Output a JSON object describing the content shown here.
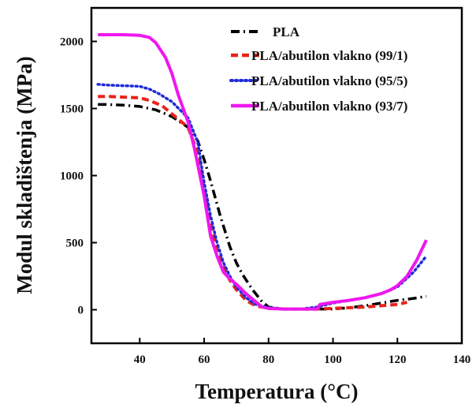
{
  "chart_data": {
    "type": "line",
    "title": "",
    "xlabel": "Temperatura (°C)",
    "ylabel": "Modul skladištenja (MPa)",
    "xlim": [
      25,
      140
    ],
    "ylim": [
      -250,
      2250
    ],
    "xticks": [
      40,
      60,
      80,
      100,
      120,
      140
    ],
    "yticks": [
      0,
      500,
      1000,
      1500,
      2000
    ],
    "legend_position": "top-right",
    "grid": false,
    "series": [
      {
        "name": "PLA",
        "color": "#000000",
        "dash": "dash-dot",
        "x": [
          27,
          30,
          35,
          40,
          45,
          50,
          55,
          58,
          60,
          62,
          65,
          68,
          70,
          72,
          75,
          78,
          80,
          85,
          90,
          95,
          100,
          105,
          110,
          115,
          120,
          125,
          129
        ],
        "y": [
          1530,
          1530,
          1525,
          1515,
          1490,
          1440,
          1360,
          1260,
          1120,
          960,
          700,
          470,
          350,
          260,
          150,
          60,
          20,
          5,
          5,
          5,
          5,
          15,
          30,
          50,
          70,
          85,
          100
        ]
      },
      {
        "name": "PLA/abutilon vlakno (99/1)",
        "color": "#e8231a",
        "dash": "dash",
        "x": [
          27,
          30,
          35,
          40,
          43,
          47,
          50,
          55,
          58,
          60,
          62,
          64,
          66,
          68,
          70,
          73,
          76,
          80,
          85,
          90,
          95,
          100,
          105,
          110,
          115,
          120,
          123
        ],
        "y": [
          1590,
          1590,
          1585,
          1580,
          1560,
          1520,
          1460,
          1360,
          1170,
          900,
          650,
          450,
          320,
          220,
          150,
          70,
          30,
          10,
          5,
          5,
          5,
          10,
          15,
          20,
          30,
          40,
          55
        ]
      },
      {
        "name": "PLA/abutilon vlakno (95/5)",
        "color": "#1f2bd8",
        "dash": "dot",
        "x": [
          27,
          30,
          35,
          40,
          43,
          46,
          50,
          55,
          58,
          60,
          62,
          64,
          66,
          68,
          70,
          73,
          76,
          80,
          85,
          90,
          95,
          100,
          105,
          110,
          115,
          120,
          125,
          129
        ],
        "y": [
          1680,
          1675,
          1670,
          1665,
          1645,
          1610,
          1550,
          1430,
          1250,
          950,
          700,
          500,
          350,
          250,
          170,
          90,
          40,
          15,
          5,
          5,
          20,
          50,
          70,
          90,
          120,
          170,
          280,
          400
        ]
      },
      {
        "name": "PLA/abutilon vlakno (93/7)",
        "color": "#ef17ef",
        "dash": "solid",
        "x": [
          27,
          30,
          35,
          40,
          43,
          45,
          48,
          50,
          52,
          55,
          57,
          60,
          62,
          64,
          66,
          68,
          70,
          73,
          76,
          78,
          80,
          85,
          90,
          95,
          96,
          100,
          105,
          110,
          115,
          118,
          120,
          123,
          126,
          129
        ],
        "y": [
          2050,
          2050,
          2050,
          2045,
          2030,
          1990,
          1880,
          1760,
          1600,
          1400,
          1200,
          850,
          550,
          400,
          280,
          230,
          190,
          120,
          60,
          20,
          10,
          5,
          5,
          5,
          40,
          55,
          70,
          90,
          120,
          150,
          180,
          250,
          370,
          520
        ]
      }
    ]
  }
}
